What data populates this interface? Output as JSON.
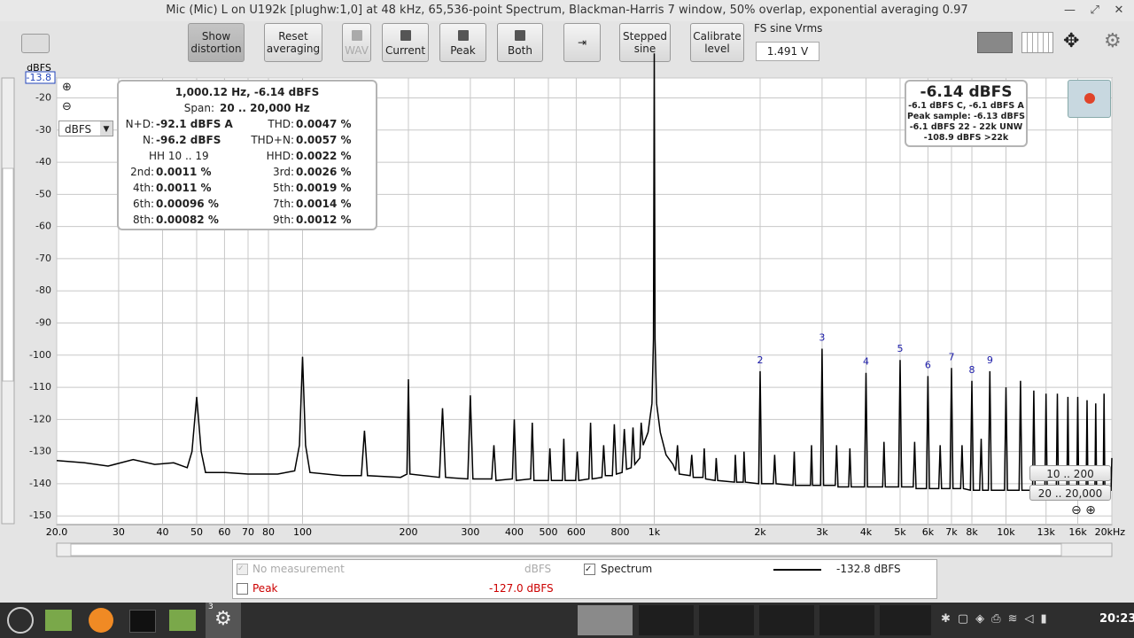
{
  "window": {
    "title": "Mic (Mic) L on U192k [plughw:1,0] at 48 kHz, 65,536-point Spectrum, Blackman-Harris 7 window, 50% overlap, exponential averaging 0.97"
  },
  "toolbar": {
    "buttons": [
      "Show distortion",
      "Reset averaging",
      "WAV",
      "Current",
      "Peak",
      "Both",
      "Stepped sine",
      "Calibrate level"
    ],
    "fs_label": "FS sine Vrms",
    "fs_value": "1.491 V"
  },
  "unit_select": "dBFS",
  "distortion": {
    "header": "1,000.12 Hz, -6.14 dBFS",
    "span_label": "Span:",
    "span": "20 .. 20,000 Hz",
    "rows_top": [
      [
        "N+D:",
        "-92.1 dBFS A",
        "THD:",
        "0.0047 %"
      ],
      [
        "N:",
        "-96.2 dBFS",
        "THD+N:",
        "0.0057 %"
      ]
    ],
    "hh_range": "HH 10 .. 19",
    "hhd": [
      "HHD:",
      "0.0022 %"
    ],
    "rows_bottom": [
      [
        "2nd:",
        "0.0011 %",
        "3rd:",
        "0.0026 %"
      ],
      [
        "4th:",
        "0.0011 %",
        "5th:",
        "0.0019 %"
      ],
      [
        "6th:",
        "0.00096 %",
        "7th:",
        "0.0014 %"
      ],
      [
        "8th:",
        "0.00082 %",
        "9th:",
        "0.0012 %"
      ]
    ]
  },
  "level": {
    "main": "-6.14 dBFS",
    "lines": [
      "-6.1 dBFS C, -6.1 dBFS A",
      "Peak sample: -6.13 dBFS",
      "-6.1 dBFS 22 - 22k UNW",
      "-108.9 dBFS >22k"
    ]
  },
  "ranges": [
    "10 .. 200",
    "20 .. 20,000"
  ],
  "legend": {
    "none": "No measurement",
    "none_unit": "dBFS",
    "spectrum_value": "-132.8 dBFS",
    "peak": "Peak",
    "peak_value": "-127.0 dBFS"
  },
  "taskbar": {
    "badge": "3",
    "clock": "20:23"
  },
  "chart_data": {
    "type": "line",
    "ylabel": "dBFS",
    "xscale": "log",
    "grid": true,
    "xlim": [
      20,
      20000
    ],
    "ylim": [
      -152.7,
      -13.8
    ],
    "xticks": [
      {
        "value": 20,
        "label": "20.0"
      },
      30,
      40,
      50,
      60,
      70,
      80,
      100,
      200,
      300,
      400,
      500,
      600,
      800,
      {
        "value": 1000,
        "label": "1k"
      },
      {
        "value": 2000,
        "label": "2k"
      },
      {
        "value": 3000,
        "label": "3k"
      },
      {
        "value": 4000,
        "label": "4k"
      },
      {
        "value": 5000,
        "label": "5k"
      },
      {
        "value": 6000,
        "label": "6k"
      },
      {
        "value": 7000,
        "label": "7k"
      },
      {
        "value": 8000,
        "label": "8k"
      },
      {
        "value": 10000,
        "label": "10k"
      },
      {
        "value": 13000,
        "label": "13k"
      },
      {
        "value": 16000,
        "label": "16k"
      },
      {
        "value": 20000,
        "label": "20kHz"
      }
    ],
    "yticks": [
      -13.8,
      -20,
      -30,
      -40,
      -50,
      -60,
      -70,
      -80,
      -90,
      -100,
      -110,
      -120,
      -130,
      -140,
      -150
    ],
    "annotation_color": "#1a1aa8",
    "annotations": [
      {
        "text": "2",
        "x": 2000
      },
      {
        "text": "3",
        "x": 3000
      },
      {
        "text": "4",
        "x": 4000
      },
      {
        "text": "5",
        "x": 5000
      },
      {
        "text": "6",
        "x": 6000
      },
      {
        "text": "7",
        "x": 7000
      },
      {
        "text": "8",
        "x": 8000
      },
      {
        "text": "9",
        "x": 9000
      }
    ],
    "x": [
      20,
      24,
      28,
      33,
      38,
      43,
      47,
      48.5,
      50,
      51.5,
      53,
      60,
      70,
      85,
      95,
      98,
      100,
      102,
      105,
      130,
      147,
      150,
      153,
      190,
      198,
      200,
      202,
      245,
      250,
      255,
      295,
      300,
      305,
      345,
      350,
      355,
      395,
      400,
      405,
      445,
      450,
      455,
      500,
      505,
      510,
      548,
      553,
      558,
      598,
      604,
      610,
      652,
      659,
      666,
      710,
      718,
      726,
      760,
      770,
      780,
      810,
      822,
      834,
      860,
      870,
      880,
      910,
      918,
      930,
      960,
      985,
      995,
      1000,
      1005,
      1015,
      1040,
      1080,
      1130,
      1150,
      1164,
      1178,
      1265,
      1278,
      1291,
      1375,
      1387,
      1400,
      1490,
      1500,
      1515,
      1690,
      1700,
      1715,
      1790,
      1800,
      1815,
      1980,
      2000,
      2020,
      2180,
      2200,
      2220,
      2480,
      2500,
      2520,
      2780,
      2800,
      2820,
      2970,
      3000,
      3030,
      3270,
      3300,
      3330,
      3570,
      3600,
      3630,
      3960,
      4000,
      4040,
      4460,
      4500,
      4540,
      4950,
      5000,
      5050,
      5450,
      5500,
      5550,
      5940,
      6000,
      6060,
      6440,
      6500,
      6560,
      6930,
      7000,
      7070,
      7430,
      7500,
      7570,
      7920,
      8000,
      8080,
      8420,
      8500,
      8580,
      8910,
      9000,
      9090,
      9900,
      10000,
      10100,
      10900,
      11000,
      11100,
      11900,
      12000,
      12100,
      12900,
      13000,
      13100,
      13900,
      14000,
      14100,
      14900,
      15000,
      15100,
      15900,
      16000,
      16100,
      16900,
      17000,
      17100,
      17900,
      18000,
      18100,
      18900,
      19000,
      19100,
      19900,
      20000
    ],
    "series": [
      {
        "name": "Spectrum",
        "color": "#000000",
        "values": [
          -132.8,
          -133.5,
          -134.5,
          -132.5,
          -134,
          -133.5,
          -135,
          -130,
          -113,
          -130,
          -136.5,
          -136.5,
          -137,
          -137,
          -136,
          -128,
          -100.5,
          -128,
          -136.5,
          -137.5,
          -137.5,
          -123.5,
          -137.5,
          -138,
          -137,
          -107.5,
          -137,
          -138,
          -116.5,
          -138,
          -138.5,
          -112.5,
          -138.5,
          -138.5,
          -128,
          -139,
          -138.5,
          -120,
          -139,
          -138.5,
          -121,
          -139,
          -139,
          -129,
          -139,
          -139,
          -126,
          -139,
          -139,
          -130,
          -139,
          -138.5,
          -121,
          -138.5,
          -138,
          -128,
          -137.5,
          -137.5,
          -121.5,
          -137,
          -136.5,
          -123,
          -135.5,
          -135,
          -122.5,
          -134,
          -132,
          -121,
          -128,
          -124,
          -115,
          -95,
          -6.14,
          -95,
          -115,
          -124,
          -131,
          -134,
          -136,
          -128,
          -137,
          -137.5,
          -131,
          -138,
          -138,
          -129,
          -138.5,
          -139,
          -132,
          -139,
          -139.5,
          -131,
          -139.5,
          -139.5,
          -130,
          -139.5,
          -140,
          -105,
          -140,
          -140,
          -131,
          -140,
          -140.5,
          -130,
          -140.5,
          -140.5,
          -128,
          -140.5,
          -140.5,
          -98,
          -140.5,
          -140.5,
          -128,
          -141,
          -141,
          -129,
          -141,
          -141,
          -105.5,
          -141,
          -141,
          -127,
          -141,
          -141,
          -101.5,
          -141,
          -141,
          -127,
          -141.5,
          -141.5,
          -106.5,
          -141.5,
          -141.5,
          -128,
          -141.5,
          -141.5,
          -104,
          -141.5,
          -141.5,
          -128,
          -141.5,
          -142,
          -108,
          -142,
          -142,
          -126,
          -142,
          -142,
          -105,
          -142,
          -142,
          -110,
          -142,
          -142,
          -108,
          -142,
          -142,
          -111,
          -142,
          -142,
          -112,
          -142,
          -142,
          -112,
          -142,
          -142,
          -113,
          -142,
          -142,
          -113,
          -142,
          -142,
          -114,
          -142,
          -142,
          -115,
          -142,
          -142,
          -112,
          -142,
          -142,
          -132
        ]
      }
    ]
  }
}
